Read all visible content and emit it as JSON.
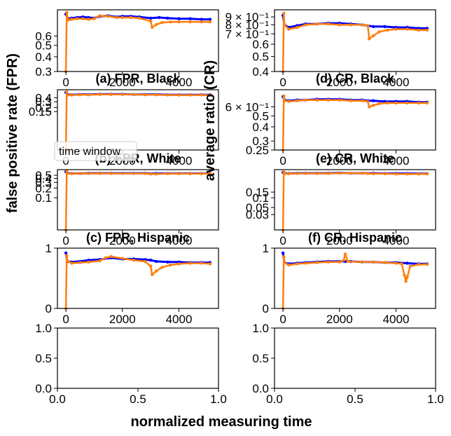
{
  "figure": {
    "ylabel_left": "false positive rate (FPR)",
    "ylabel_right": "average ratio (CR)",
    "xlabel": "normalized measuring time",
    "legend": {
      "label": "time window"
    }
  },
  "colors": {
    "series_blue": "#0000ff",
    "series_orange": "#ff7f0e",
    "axes": "#000000"
  },
  "chart_data": [
    {
      "id": "a",
      "type": "line",
      "title": "(a) FPR, Black",
      "xlim": [
        -300,
        5400
      ],
      "ylim": [
        0.3,
        1.0
      ],
      "yscale": "log",
      "xticks": [
        0,
        2000,
        4000
      ],
      "xtick_labels": [
        "0",
        "2000",
        "4000"
      ],
      "yticks": [
        0.3,
        0.4,
        0.5,
        0.6
      ],
      "ytick_labels": [
        "0.3",
        "0.4",
        "0.5",
        "0.6"
      ],
      "series": [
        {
          "color": "blue",
          "x": [
            0,
            50,
            100,
            200,
            400,
            600,
            800,
            1000,
            1200,
            1500,
            1800,
            2000,
            2300,
            2600,
            3000,
            3300,
            3600,
            4000,
            4400,
            4800,
            5100
          ],
          "y": [
            0.92,
            0.86,
            0.84,
            0.85,
            0.86,
            0.87,
            0.86,
            0.85,
            0.88,
            0.89,
            0.87,
            0.88,
            0.88,
            0.87,
            0.85,
            0.86,
            0.85,
            0.84,
            0.84,
            0.83,
            0.83
          ]
        },
        {
          "color": "orange",
          "x": [
            0,
            30,
            50,
            100,
            200,
            400,
            600,
            800,
            1000,
            1200,
            1500,
            1800,
            2000,
            2300,
            2600,
            3000,
            3050,
            3200,
            3400,
            3700,
            4000,
            4400,
            4800,
            5100
          ],
          "y": [
            0.3,
            0.95,
            0.86,
            0.82,
            0.83,
            0.84,
            0.84,
            0.83,
            0.84,
            0.89,
            0.88,
            0.86,
            0.86,
            0.86,
            0.85,
            0.8,
            0.71,
            0.75,
            0.78,
            0.79,
            0.79,
            0.79,
            0.79,
            0.79
          ]
        }
      ]
    },
    {
      "id": "b",
      "type": "line",
      "title": "(b) FPR, White",
      "xlim": [
        -300,
        5400
      ],
      "ylim": [
        0.01,
        0.7
      ],
      "yscale": "log",
      "xticks": [
        0,
        2000,
        4000
      ],
      "xtick_labels": [
        "0",
        "2000",
        "4000"
      ],
      "yticks": [
        0.15,
        0.2,
        0.3,
        0.4
      ],
      "ytick_labels": [
        "0.15",
        "0.2",
        "0.3",
        "0.4"
      ],
      "series": [
        {
          "color": "blue",
          "x": [
            0,
            50,
            200,
            500,
            800,
            1200,
            1600,
            2000,
            2400,
            2800,
            3200,
            3600,
            4000,
            4400,
            4800,
            5100
          ],
          "y": [
            0.58,
            0.5,
            0.49,
            0.5,
            0.5,
            0.51,
            0.51,
            0.51,
            0.5,
            0.5,
            0.5,
            0.49,
            0.49,
            0.49,
            0.49,
            0.49
          ]
        },
        {
          "color": "orange",
          "x": [
            0,
            30,
            50,
            200,
            500,
            800,
            1200,
            1600,
            2000,
            2400,
            2800,
            3200,
            3600,
            4000,
            4400,
            4800,
            5100
          ],
          "y": [
            0.01,
            0.6,
            0.48,
            0.48,
            0.49,
            0.49,
            0.5,
            0.5,
            0.5,
            0.5,
            0.49,
            0.49,
            0.48,
            0.48,
            0.48,
            0.48,
            0.48
          ]
        }
      ]
    },
    {
      "id": "c",
      "type": "line",
      "title": "(c) FPR, Hispanic",
      "xlim": [
        -300,
        5400
      ],
      "ylim": [
        0.01,
        0.75
      ],
      "yscale": "log",
      "xticks": [
        0,
        2000,
        4000
      ],
      "xtick_labels": [
        "0",
        "2000",
        "4000"
      ],
      "yticks": [
        0.1,
        0.2,
        0.3,
        0.4,
        0.5
      ],
      "ytick_labels": [
        "0.1",
        "0.2",
        "0.3",
        "0.4",
        "0.5"
      ],
      "series": [
        {
          "color": "blue",
          "x": [
            0,
            50,
            200,
            500,
            800,
            1200,
            1600,
            2000,
            2400,
            2800,
            3000,
            3200,
            3600,
            4000,
            4400,
            4800,
            5100
          ],
          "y": [
            0.65,
            0.58,
            0.57,
            0.57,
            0.58,
            0.58,
            0.58,
            0.58,
            0.58,
            0.58,
            0.56,
            0.57,
            0.57,
            0.57,
            0.57,
            0.57,
            0.57
          ]
        },
        {
          "color": "orange",
          "x": [
            0,
            30,
            50,
            200,
            500,
            800,
            1200,
            1600,
            2000,
            2400,
            2800,
            3000,
            3200,
            3600,
            4000,
            4400,
            4800,
            5100
          ],
          "y": [
            0.01,
            0.68,
            0.57,
            0.56,
            0.57,
            0.57,
            0.57,
            0.57,
            0.57,
            0.57,
            0.57,
            0.55,
            0.55,
            0.56,
            0.56,
            0.56,
            0.56,
            0.56
          ]
        }
      ]
    },
    {
      "id": "row4-left",
      "type": "line",
      "title": "",
      "xlim": [
        -300,
        5400
      ],
      "ylim": [
        0,
        1
      ],
      "yscale": "linear",
      "xticks": [
        0,
        2000,
        4000
      ],
      "xtick_labels": [
        "0",
        "2000",
        "4000"
      ],
      "yticks": [
        0,
        1
      ],
      "ytick_labels": [
        "0",
        "1"
      ],
      "series": [
        {
          "color": "blue",
          "x": [
            0,
            50,
            200,
            500,
            800,
            1200,
            1600,
            2000,
            2400,
            2800,
            3000,
            3200,
            3600,
            4000,
            4400,
            4800,
            5100
          ],
          "y": [
            0.92,
            0.78,
            0.77,
            0.78,
            0.8,
            0.81,
            0.84,
            0.82,
            0.82,
            0.81,
            0.8,
            0.78,
            0.77,
            0.77,
            0.76,
            0.76,
            0.76
          ]
        },
        {
          "color": "orange",
          "x": [
            0,
            30,
            50,
            200,
            500,
            800,
            1200,
            1400,
            1600,
            2000,
            2400,
            2800,
            3000,
            3050,
            3200,
            3400,
            3700,
            4000,
            4400,
            4800,
            5100
          ],
          "y": [
            0.0,
            0.88,
            0.79,
            0.75,
            0.76,
            0.77,
            0.79,
            0.84,
            0.86,
            0.83,
            0.8,
            0.78,
            0.7,
            0.56,
            0.62,
            0.68,
            0.72,
            0.74,
            0.75,
            0.75,
            0.74
          ]
        }
      ]
    },
    {
      "id": "d",
      "type": "line",
      "title": "(d) CR, Black",
      "xlim": [
        -300,
        5400
      ],
      "ylim": [
        0.4,
        1.0
      ],
      "yscale": "log",
      "xticks": [
        0,
        2000,
        4000
      ],
      "xtick_labels": [
        "0",
        "2000",
        "4000"
      ],
      "yticks": [
        0.4,
        0.5,
        0.6,
        0.7,
        0.8,
        0.9
      ],
      "ytick_labels": [
        "0.4",
        "0.5",
        "0.6",
        "7 × 10⁻¹",
        "8 × 10⁻¹",
        "9 × 10⁻¹"
      ],
      "series": [
        {
          "color": "blue",
          "x": [
            0,
            50,
            200,
            500,
            800,
            1200,
            1600,
            2000,
            2400,
            2800,
            3000,
            3200,
            3600,
            4000,
            4400,
            4800,
            5100
          ],
          "y": [
            0.92,
            0.8,
            0.77,
            0.79,
            0.81,
            0.81,
            0.82,
            0.82,
            0.81,
            0.8,
            0.79,
            0.78,
            0.78,
            0.77,
            0.77,
            0.76,
            0.76
          ]
        },
        {
          "color": "orange",
          "x": [
            0,
            30,
            50,
            200,
            500,
            800,
            1200,
            1600,
            2000,
            2400,
            2800,
            3000,
            3050,
            3200,
            3400,
            3700,
            4000,
            4400,
            4800,
            5100
          ],
          "y": [
            0.4,
            0.95,
            0.8,
            0.75,
            0.77,
            0.8,
            0.81,
            0.81,
            0.8,
            0.8,
            0.8,
            0.79,
            0.65,
            0.68,
            0.72,
            0.74,
            0.75,
            0.75,
            0.74,
            0.74
          ]
        }
      ]
    },
    {
      "id": "e",
      "type": "line",
      "title": "(e) CR, White",
      "xlim": [
        -300,
        5400
      ],
      "ylim": [
        0.25,
        0.85
      ],
      "yscale": "log",
      "xticks": [
        0,
        2000,
        4000
      ],
      "xtick_labels": [
        "0",
        "2000",
        "4000"
      ],
      "yticks": [
        0.25,
        0.3,
        0.4,
        0.5,
        0.6
      ],
      "ytick_labels": [
        "0.25",
        "0.3",
        "0.4",
        "0.5",
        "6 × 10⁻¹"
      ],
      "series": [
        {
          "color": "blue",
          "x": [
            0,
            50,
            200,
            500,
            800,
            1200,
            1600,
            2000,
            2400,
            2800,
            3000,
            3200,
            3600,
            4000,
            4400,
            4800,
            5100
          ],
          "y": [
            0.74,
            0.69,
            0.68,
            0.69,
            0.69,
            0.7,
            0.7,
            0.7,
            0.69,
            0.69,
            0.68,
            0.68,
            0.67,
            0.67,
            0.67,
            0.66,
            0.66
          ]
        },
        {
          "color": "orange",
          "x": [
            0,
            30,
            50,
            200,
            500,
            800,
            1200,
            1600,
            2000,
            2400,
            2800,
            3000,
            3050,
            3200,
            3400,
            3700,
            4000,
            4400,
            4800,
            5100
          ],
          "y": [
            0.25,
            0.75,
            0.68,
            0.67,
            0.68,
            0.69,
            0.69,
            0.69,
            0.69,
            0.68,
            0.68,
            0.67,
            0.6,
            0.62,
            0.64,
            0.65,
            0.65,
            0.65,
            0.65,
            0.65
          ]
        }
      ]
    },
    {
      "id": "f",
      "type": "line",
      "title": "(f) CR, Hispanic",
      "xlim": [
        -300,
        5400
      ],
      "ylim": [
        0.01,
        0.75
      ],
      "yscale": "log",
      "xticks": [
        0,
        2000,
        4000
      ],
      "xtick_labels": [
        "0",
        "2000",
        "4000"
      ],
      "yticks": [
        0.03,
        0.05,
        0.1,
        0.15
      ],
      "ytick_labels": [
        "0.03",
        "0.05",
        "0.1",
        "0.15"
      ],
      "series": [
        {
          "color": "blue",
          "x": [
            0,
            50,
            200,
            500,
            800,
            1200,
            1600,
            2000,
            2400,
            2800,
            3200,
            3600,
            4000,
            4400,
            4800,
            5100
          ],
          "y": [
            0.62,
            0.58,
            0.57,
            0.58,
            0.58,
            0.58,
            0.58,
            0.59,
            0.58,
            0.58,
            0.58,
            0.57,
            0.57,
            0.57,
            0.56,
            0.56
          ]
        },
        {
          "color": "orange",
          "x": [
            0,
            30,
            50,
            200,
            500,
            800,
            1200,
            1600,
            2000,
            2400,
            2800,
            3000,
            3200,
            3600,
            4000,
            4400,
            4800,
            5100
          ],
          "y": [
            0.01,
            0.64,
            0.57,
            0.56,
            0.57,
            0.57,
            0.57,
            0.57,
            0.58,
            0.58,
            0.58,
            0.57,
            0.56,
            0.56,
            0.55,
            0.55,
            0.55,
            0.55
          ]
        }
      ]
    },
    {
      "id": "row4-right",
      "type": "line",
      "title": "",
      "xlim": [
        -300,
        5400
      ],
      "ylim": [
        0,
        1
      ],
      "yscale": "linear",
      "xticks": [
        0,
        2000,
        4000
      ],
      "xtick_labels": [
        "0",
        "2000",
        "4000"
      ],
      "yticks": [
        0,
        1
      ],
      "ytick_labels": [
        "0",
        "1"
      ],
      "series": [
        {
          "color": "blue",
          "x": [
            0,
            50,
            200,
            500,
            800,
            1200,
            1600,
            2000,
            2200,
            2400,
            2800,
            3200,
            3600,
            4000,
            4400,
            4800,
            5100
          ],
          "y": [
            0.92,
            0.76,
            0.74,
            0.75,
            0.76,
            0.77,
            0.78,
            0.78,
            0.78,
            0.78,
            0.77,
            0.77,
            0.76,
            0.76,
            0.75,
            0.74,
            0.74
          ]
        },
        {
          "color": "orange",
          "x": [
            0,
            30,
            50,
            200,
            500,
            800,
            1200,
            1600,
            2000,
            2150,
            2200,
            2300,
            2800,
            3200,
            3600,
            4000,
            4200,
            4300,
            4350,
            4400,
            4500,
            4800,
            5100
          ],
          "y": [
            0.0,
            0.86,
            0.76,
            0.72,
            0.74,
            0.75,
            0.76,
            0.77,
            0.77,
            0.8,
            0.9,
            0.78,
            0.77,
            0.77,
            0.76,
            0.75,
            0.74,
            0.55,
            0.45,
            0.52,
            0.7,
            0.73,
            0.73
          ]
        }
      ]
    },
    {
      "id": "row5-left",
      "type": "line",
      "title": "",
      "xlim": [
        0,
        1
      ],
      "ylim": [
        0,
        1
      ],
      "yscale": "linear",
      "xticks": [
        0,
        0.5,
        1
      ],
      "xtick_labels": [
        "0.0",
        "0.5",
        "1.0"
      ],
      "yticks": [
        0,
        0.5,
        1
      ],
      "ytick_labels": [
        "0.0",
        "0.5",
        "1.0"
      ],
      "series": []
    },
    {
      "id": "row5-right",
      "type": "line",
      "title": "",
      "xlim": [
        0,
        1
      ],
      "ylim": [
        0,
        1
      ],
      "yscale": "linear",
      "xticks": [
        0,
        0.5,
        1
      ],
      "xtick_labels": [
        "0.0",
        "0.5",
        "1.0"
      ],
      "yticks": [
        0,
        0.5,
        1
      ],
      "ytick_labels": [
        "0.0",
        "0.5",
        "1.0"
      ],
      "series": []
    }
  ]
}
